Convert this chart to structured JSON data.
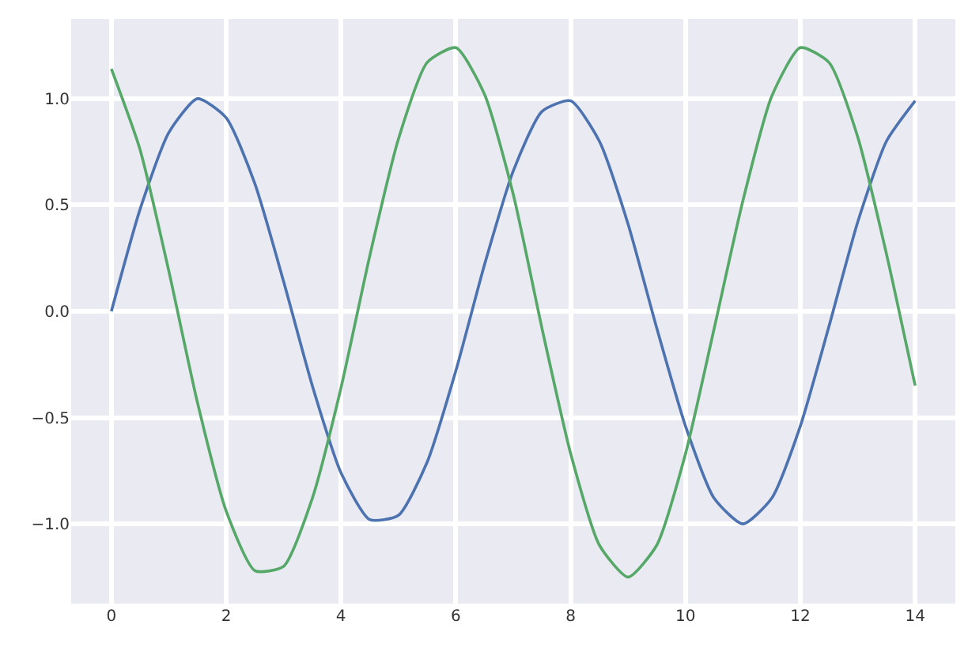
{
  "chart_data": {
    "type": "line",
    "x": [
      0,
      0.5,
      1,
      1.5,
      2,
      2.5,
      3,
      3.5,
      4,
      4.5,
      5,
      5.5,
      6,
      6.5,
      7,
      7.5,
      8,
      8.5,
      9,
      9.5,
      10,
      10.5,
      11,
      11.5,
      12,
      12.5,
      13,
      13.5,
      14
    ],
    "series": [
      {
        "color": "#4c72b0",
        "values": [
          0,
          0.48,
          0.84,
          1.0,
          0.91,
          0.6,
          0.14,
          -0.35,
          -0.76,
          -0.98,
          -0.96,
          -0.71,
          -0.28,
          0.22,
          0.66,
          0.94,
          0.99,
          0.8,
          0.41,
          -0.08,
          -0.54,
          -0.88,
          -1.0,
          -0.88,
          -0.54,
          -0.07,
          0.42,
          0.8,
          0.99
        ]
      },
      {
        "color": "#55a868",
        "values": [
          1.14,
          0.76,
          0.19,
          -0.43,
          -0.94,
          -1.22,
          -1.2,
          -0.88,
          -0.36,
          0.26,
          0.81,
          1.17,
          1.24,
          1.02,
          0.55,
          -0.08,
          -0.67,
          -1.1,
          -1.25,
          -1.1,
          -0.67,
          -0.08,
          0.52,
          1.01,
          1.24,
          1.17,
          0.82,
          0.27,
          -0.35
        ]
      }
    ],
    "xlim": [
      -0.7,
      14.7
    ],
    "ylim": [
      -1.375,
      1.375
    ],
    "xticks": [
      0,
      2,
      4,
      6,
      8,
      10,
      12,
      14
    ],
    "yticks": [
      {
        "value": -1,
        "label": "−1.0"
      },
      {
        "value": -0.5,
        "label": "−0.5"
      },
      {
        "value": 0,
        "label": "0.0"
      },
      {
        "value": 0.5,
        "label": "0.5"
      },
      {
        "value": 1,
        "label": "1.0"
      }
    ],
    "grid": true,
    "line_style": "solid",
    "marker": "none"
  }
}
